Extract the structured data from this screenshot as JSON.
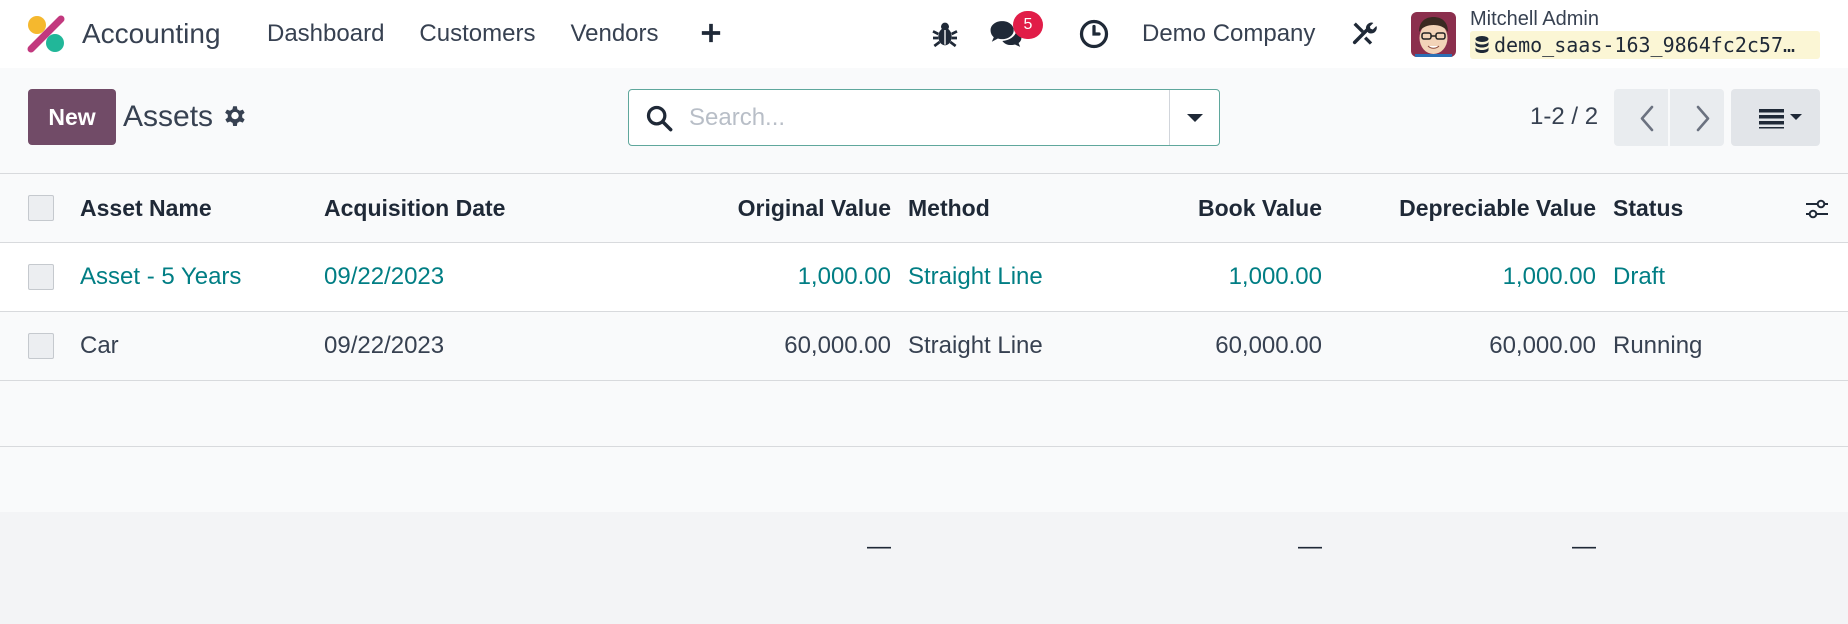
{
  "navbar": {
    "app_name": "Accounting",
    "menu": [
      "Dashboard",
      "Customers",
      "Vendors"
    ],
    "messages_badge": "5",
    "company": "Demo Company",
    "user_name": "Mitchell Admin",
    "database": "demo_saas-163_9864fc2c57…",
    "icons": [
      "app-logo",
      "plus-icon",
      "bug-icon",
      "chat-icon",
      "clock-icon",
      "tools-icon",
      "database-icon"
    ]
  },
  "control_panel": {
    "new_label": "New",
    "title": "Assets",
    "search_placeholder": "Search...",
    "pager": "1-2 / 2",
    "colors": {
      "primary": "#714b67",
      "link": "#017e84",
      "badge": "#e11d48"
    }
  },
  "table": {
    "columns": [
      "Asset Name",
      "Acquisition Date",
      "Original Value",
      "Method",
      "Book Value",
      "Depreciable Value",
      "Status"
    ],
    "rows": [
      {
        "name": "Asset - 5 Years",
        "date": "09/22/2023",
        "original_value": "1,000.00",
        "method": "Straight Line",
        "book_value": "1,000.00",
        "depreciable_value": "1,000.00",
        "status": "Draft"
      },
      {
        "name": "Car",
        "date": "09/22/2023",
        "original_value": "60,000.00",
        "method": "Straight Line",
        "book_value": "60,000.00",
        "depreciable_value": "60,000.00",
        "status": "Running"
      }
    ],
    "footer": {
      "original_value": "—",
      "book_value": "—",
      "depreciable_value": "—"
    }
  }
}
